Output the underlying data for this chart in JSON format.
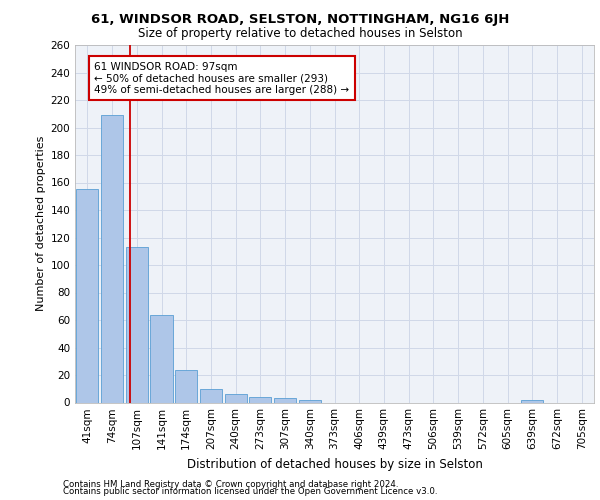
{
  "title1": "61, WINDSOR ROAD, SELSTON, NOTTINGHAM, NG16 6JH",
  "title2": "Size of property relative to detached houses in Selston",
  "xlabel": "Distribution of detached houses by size in Selston",
  "ylabel": "Number of detached properties",
  "footnote1": "Contains HM Land Registry data © Crown copyright and database right 2024.",
  "footnote2": "Contains public sector information licensed under the Open Government Licence v3.0.",
  "bar_labels": [
    "41sqm",
    "74sqm",
    "107sqm",
    "141sqm",
    "174sqm",
    "207sqm",
    "240sqm",
    "273sqm",
    "307sqm",
    "340sqm",
    "373sqm",
    "406sqm",
    "439sqm",
    "473sqm",
    "506sqm",
    "539sqm",
    "572sqm",
    "605sqm",
    "639sqm",
    "672sqm",
    "705sqm"
  ],
  "bar_values": [
    155,
    209,
    113,
    64,
    24,
    10,
    6,
    4,
    3,
    2,
    0,
    0,
    0,
    0,
    0,
    0,
    0,
    0,
    2,
    0,
    0
  ],
  "bar_color": "#aec6e8",
  "bar_edge_color": "#5a9fd4",
  "grid_color": "#d0d8e8",
  "background_color": "#eef2f8",
  "property_line_x": 1.74,
  "property_line_color": "#cc0000",
  "annotation_text": "61 WINDSOR ROAD: 97sqm\n← 50% of detached houses are smaller (293)\n49% of semi-detached houses are larger (288) →",
  "annotation_box_color": "#cc0000",
  "ylim": [
    0,
    260
  ],
  "yticks": [
    0,
    20,
    40,
    60,
    80,
    100,
    120,
    140,
    160,
    180,
    200,
    220,
    240,
    260
  ],
  "title1_fontsize": 9.5,
  "title2_fontsize": 8.5,
  "ylabel_fontsize": 8,
  "xlabel_fontsize": 8.5,
  "tick_fontsize": 7.5,
  "annotation_fontsize": 7.5,
  "footnote_fontsize": 6.2
}
